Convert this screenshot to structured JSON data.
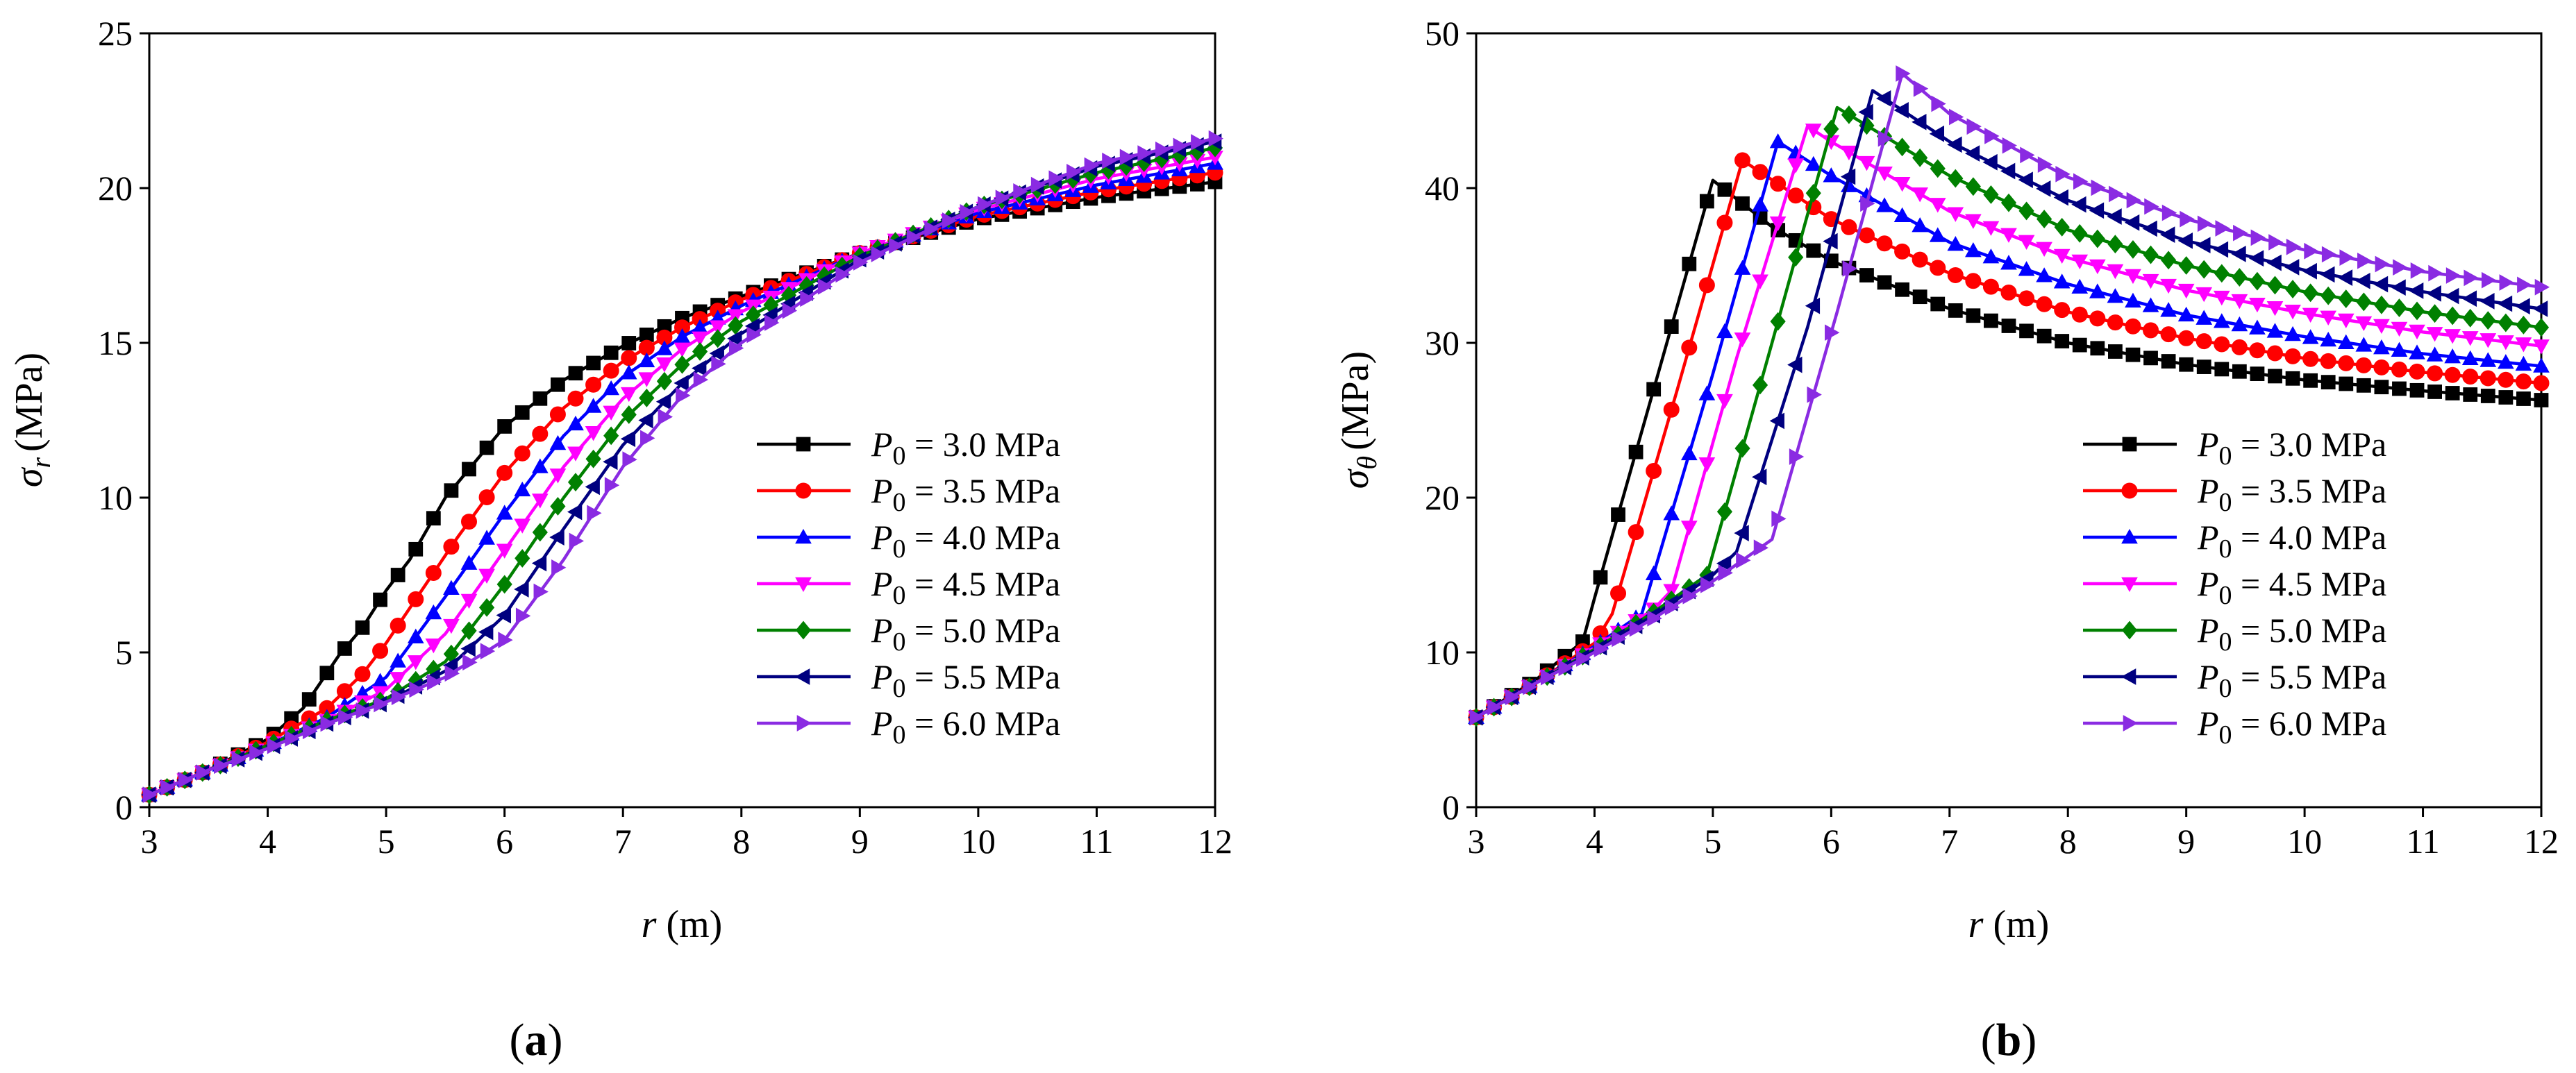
{
  "panels": {
    "a": {
      "label_open": "(",
      "label_letter": "a",
      "label_close": ")"
    },
    "b": {
      "label_open": "(",
      "label_letter": "b",
      "label_close": ")"
    }
  },
  "chart_data": [
    {
      "type": "line",
      "panel": "a",
      "xlabel": {
        "symbol": "r",
        "unit": "(m)"
      },
      "ylabel": {
        "symbol": "σ",
        "sub": "r",
        "unit": "(MPa)"
      },
      "xlim": [
        3,
        12
      ],
      "ylim": [
        0,
        25
      ],
      "xticks": [
        "3",
        "4",
        "5",
        "6",
        "7",
        "8",
        "9",
        "10",
        "11",
        "12"
      ],
      "yticks": [
        "0",
        "5",
        "10",
        "15",
        "20",
        "25"
      ],
      "legend_position": "lower-right",
      "series": [
        {
          "name": "P0 = 3.0 MPa",
          "P0": 3.0,
          "color": "#000000",
          "marker": "square",
          "x": [
            3,
            3.5,
            4,
            4.3,
            4.6,
            4.8,
            5,
            5.2,
            5.5,
            6,
            6.5,
            7,
            7.5,
            8,
            9,
            10,
            11,
            12
          ],
          "y": [
            0.4,
            1.2,
            2.2,
            3.2,
            4.9,
            5.8,
            7.0,
            8.0,
            10.0,
            12.3,
            13.8,
            14.9,
            15.8,
            16.5,
            17.9,
            19.0,
            19.7,
            20.2
          ]
        },
        {
          "name": "P0 = 3.5 MPa",
          "P0": 3.5,
          "color": "#ff0000",
          "marker": "circle",
          "x": [
            3,
            3.5,
            4,
            4.5,
            4.8,
            5,
            5.3,
            5.6,
            6,
            6.5,
            7,
            7.5,
            8,
            9,
            10,
            11,
            12
          ],
          "y": [
            0.4,
            1.2,
            2.1,
            3.2,
            4.3,
            5.3,
            7.0,
            8.7,
            10.8,
            12.9,
            14.4,
            15.5,
            16.4,
            17.9,
            19.1,
            19.9,
            20.5
          ]
        },
        {
          "name": "P0 = 4.0 MPa",
          "P0": 4.0,
          "color": "#0000ff",
          "marker": "triangle-up",
          "x": [
            3,
            3.5,
            4,
            4.5,
            5,
            5.5,
            6,
            6.5,
            7,
            7.5,
            8,
            9,
            10,
            11,
            12
          ],
          "y": [
            0.4,
            1.2,
            2.0,
            2.9,
            4.2,
            6.8,
            9.5,
            12.0,
            13.9,
            15.2,
            16.2,
            17.9,
            19.2,
            20.1,
            20.8
          ]
        },
        {
          "name": "P0 = 4.5 MPa",
          "P0": 4.5,
          "color": "#ff00ff",
          "marker": "triangle-down",
          "x": [
            3,
            3.5,
            4,
            4.5,
            5,
            5.5,
            6,
            6.5,
            7,
            7.5,
            8,
            9,
            10,
            11,
            12
          ],
          "y": [
            0.4,
            1.2,
            2.0,
            2.8,
            3.8,
            5.6,
            8.3,
            11.0,
            13.2,
            14.8,
            16.0,
            17.9,
            19.3,
            20.3,
            21.0
          ]
        },
        {
          "name": "P0 = 5.0 MPa",
          "P0": 5.0,
          "color": "#008000",
          "marker": "diamond",
          "x": [
            3,
            3.5,
            4,
            4.5,
            5,
            5.5,
            6,
            6.5,
            7,
            7.5,
            8,
            9,
            10,
            11,
            12
          ],
          "y": [
            0.4,
            1.2,
            2.0,
            2.8,
            3.5,
            4.7,
            7.2,
            10.0,
            12.5,
            14.3,
            15.7,
            17.8,
            19.4,
            20.5,
            21.3
          ]
        },
        {
          "name": "P0 = 5.5 MPa",
          "P0": 5.5,
          "color": "#000080",
          "marker": "triangle-left",
          "x": [
            3,
            3.5,
            4,
            4.5,
            5,
            5.5,
            6,
            6.5,
            7,
            7.5,
            8,
            9,
            10,
            11,
            12
          ],
          "y": [
            0.4,
            1.2,
            1.9,
            2.7,
            3.4,
            4.4,
            6.2,
            9.0,
            11.7,
            13.7,
            15.3,
            17.7,
            19.4,
            20.7,
            21.5
          ]
        },
        {
          "name": "P0 = 6.0 MPa",
          "P0": 6.0,
          "color": "#8a2be2",
          "marker": "triangle-right",
          "x": [
            3,
            3.5,
            4,
            4.5,
            5,
            5.5,
            6,
            6.5,
            7,
            7.5,
            8,
            9,
            10,
            11,
            12
          ],
          "y": [
            0.4,
            1.2,
            1.9,
            2.7,
            3.4,
            4.2,
            5.4,
            8.0,
            11.0,
            13.3,
            15.0,
            17.6,
            19.4,
            20.8,
            21.6
          ]
        }
      ]
    },
    {
      "type": "line",
      "panel": "b",
      "xlabel": {
        "symbol": "r",
        "unit": "(m)"
      },
      "ylabel": {
        "symbol": "σ",
        "sub": "θ",
        "unit": "(MPa)"
      },
      "xlim": [
        3,
        12
      ],
      "ylim": [
        0,
        50
      ],
      "xticks": [
        "3",
        "4",
        "5",
        "6",
        "7",
        "8",
        "9",
        "10",
        "11",
        "12"
      ],
      "yticks": [
        "0",
        "10",
        "20",
        "30",
        "40",
        "50"
      ],
      "legend_position": "lower-right",
      "series": [
        {
          "name": "P0 = 3.0 MPa",
          "P0": 3.0,
          "color": "#000000",
          "marker": "square",
          "x": [
            3,
            3.5,
            3.9,
            4.0,
            4.5,
            5.0,
            5.5,
            6,
            7,
            8,
            9,
            10,
            11,
            12
          ],
          "y": [
            5.8,
            8.2,
            10.7,
            13.5,
            27.0,
            40.5,
            37.5,
            35.3,
            32.2,
            30.0,
            28.6,
            27.6,
            26.9,
            26.3
          ]
        },
        {
          "name": "P0 = 3.5 MPa",
          "P0": 3.5,
          "color": "#ff0000",
          "marker": "circle",
          "x": [
            3,
            3.5,
            4,
            4.15,
            4.7,
            5.25,
            6,
            7,
            8,
            9,
            10,
            11,
            12
          ],
          "y": [
            5.8,
            8.0,
            10.6,
            12.5,
            27.0,
            41.8,
            38.0,
            34.5,
            32.0,
            30.3,
            29.0,
            28.1,
            27.4
          ]
        },
        {
          "name": "P0 = 4.0 MPa",
          "P0": 4.0,
          "color": "#0000ff",
          "marker": "triangle-up",
          "x": [
            3,
            3.5,
            4,
            4.4,
            5.0,
            5.55,
            6,
            7,
            8,
            9,
            10,
            11,
            12
          ],
          "y": [
            5.8,
            8.0,
            10.4,
            12.5,
            28.0,
            43.0,
            40.8,
            36.5,
            33.8,
            31.8,
            30.4,
            29.3,
            28.5
          ]
        },
        {
          "name": "P0 = 4.5 MPa",
          "P0": 4.5,
          "color": "#ff00ff",
          "marker": "triangle-down",
          "x": [
            3,
            3.5,
            4,
            4.5,
            4.65,
            5.2,
            5.8,
            6,
            7,
            8,
            9,
            10,
            11,
            12
          ],
          "y": [
            5.8,
            8.0,
            10.3,
            12.8,
            14.0,
            29.0,
            44.0,
            43.0,
            38.5,
            35.5,
            33.4,
            31.9,
            30.7,
            29.8
          ]
        },
        {
          "name": "P0 = 5.0 MPa",
          "P0": 5.0,
          "color": "#008000",
          "marker": "diamond",
          "x": [
            3,
            3.5,
            4,
            4.5,
            4.95,
            5.5,
            6.05,
            7,
            8,
            9,
            10,
            11,
            12
          ],
          "y": [
            5.8,
            8.0,
            10.2,
            12.6,
            15.0,
            30.0,
            45.2,
            40.8,
            37.3,
            35.0,
            33.3,
            32.0,
            31.0
          ]
        },
        {
          "name": "P0 = 5.5 MPa",
          "P0": 5.5,
          "color": "#000080",
          "marker": "triangle-left",
          "x": [
            3,
            3.5,
            4,
            4.5,
            5,
            5.2,
            5.8,
            6.35,
            7,
            8,
            9,
            10,
            11,
            12
          ],
          "y": [
            5.8,
            8.0,
            10.1,
            12.4,
            15.0,
            16.5,
            31.0,
            46.3,
            43.0,
            39.2,
            36.6,
            34.7,
            33.3,
            32.2
          ]
        },
        {
          "name": "P0 = 6.0 MPa",
          "P0": 6.0,
          "color": "#8a2be2",
          "marker": "triangle-right",
          "x": [
            3,
            3.5,
            4,
            4.5,
            5,
            5.5,
            6.05,
            6.6,
            7,
            8,
            9,
            10,
            11,
            12
          ],
          "y": [
            5.8,
            8.0,
            10.0,
            12.2,
            14.6,
            17.3,
            32.0,
            47.4,
            44.8,
            40.7,
            38.0,
            36.0,
            34.6,
            33.6
          ]
        }
      ]
    }
  ]
}
